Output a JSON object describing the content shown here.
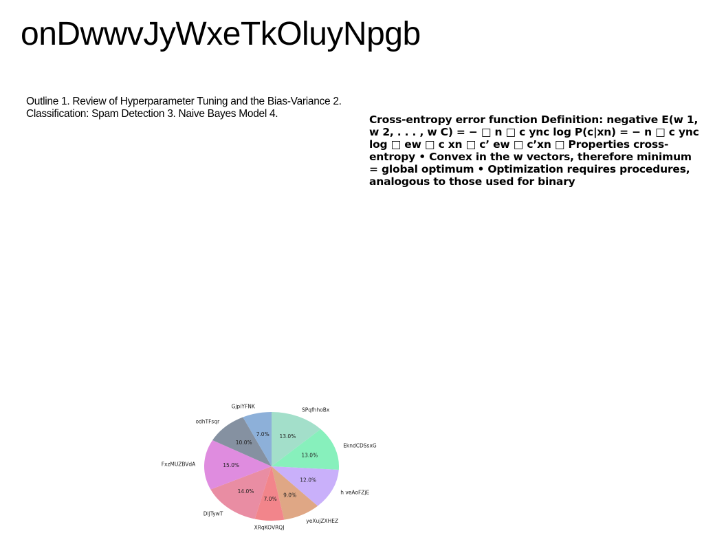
{
  "slide": {
    "title": "onDwwvJyWxeTkOluyNpgb",
    "outline_text": "Outline 1. Review of Hyperparameter Tuning and the Bias-Variance 2. Classification: Spam Detection 3. Naive Bayes Model 4.",
    "cross_entropy_text": "Cross-entropy error function Definition: negative E(w 1, w 2, . . . , w C) = − □ n □ c ync log P(c|xn) = − n □ c ync log □ ew □ c xn □ c’ ew □ c’xn □ Properties cross-entropy • Convex in the w vectors, therefore minimum = global optimum • Optimization requires procedures, analogous to those used for binary"
  },
  "chart_data": {
    "type": "pie",
    "title": "",
    "start_angle_deg": 90,
    "direction": "clockwise",
    "slices": [
      {
        "label": "SPqfhhoBx",
        "value": 13.0,
        "pct_label": "13.0%",
        "color": "#a3dfca"
      },
      {
        "label": "EkndCDSsxG",
        "value": 13.0,
        "pct_label": "13.0%",
        "color": "#87f0bc"
      },
      {
        "label": "h veAoFZjE",
        "value": 12.0,
        "pct_label": "12.0%",
        "color": "#c9b0fa"
      },
      {
        "label": "yeXujZXHEZ",
        "value": 9.0,
        "pct_label": "9.0%",
        "color": "#dfa785"
      },
      {
        "label": "XRqKOVRQJ",
        "value": 7.0,
        "pct_label": "7.0%",
        "color": "#f2858b"
      },
      {
        "label": "DlJTywT",
        "value": 14.0,
        "pct_label": "14.0%",
        "color": "#e98da3"
      },
      {
        "label": "FxzMUZBVdA",
        "value": 15.0,
        "pct_label": "15.0%",
        "color": "#df8cdf"
      },
      {
        "label": "odhTFsqr",
        "value": 10.0,
        "pct_label": "10.0%",
        "color": "#8591a1"
      },
      {
        "label": "GjpiYFNK",
        "value": 7.0,
        "pct_label": "7.0%",
        "color": "#8db0d9"
      }
    ]
  }
}
